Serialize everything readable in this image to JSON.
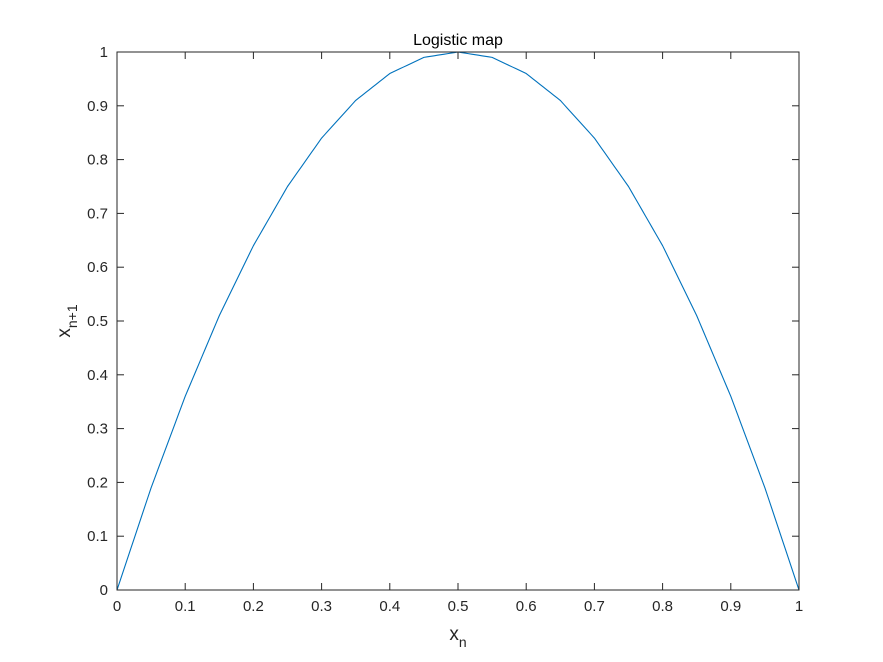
{
  "chart_data": {
    "type": "line",
    "title": "Logistic map",
    "xlabel": {
      "base": "x",
      "subscript": "n"
    },
    "ylabel": {
      "base": "x",
      "subscript": "n+1"
    },
    "xlim": [
      0,
      1
    ],
    "ylim": [
      0,
      1
    ],
    "xticks": [
      "0",
      "0.1",
      "0.2",
      "0.3",
      "0.4",
      "0.5",
      "0.6",
      "0.7",
      "0.8",
      "0.9",
      "1"
    ],
    "yticks": [
      "0",
      "0.1",
      "0.2",
      "0.3",
      "0.4",
      "0.5",
      "0.6",
      "0.7",
      "0.8",
      "0.9",
      "1"
    ],
    "grid": false,
    "box": true,
    "series": [
      {
        "color": "#0072bd",
        "x": [
          0,
          0.05,
          0.1,
          0.15,
          0.2,
          0.25,
          0.3,
          0.35,
          0.4,
          0.45,
          0.5,
          0.55,
          0.6,
          0.65,
          0.7,
          0.75,
          0.8,
          0.85,
          0.9,
          0.95,
          1
        ],
        "y": [
          0,
          0.19,
          0.36,
          0.51,
          0.64,
          0.75,
          0.84,
          0.91,
          0.96,
          0.99,
          1,
          0.99,
          0.96,
          0.91,
          0.84,
          0.75,
          0.64,
          0.51,
          0.36,
          0.19,
          0
        ]
      }
    ]
  }
}
